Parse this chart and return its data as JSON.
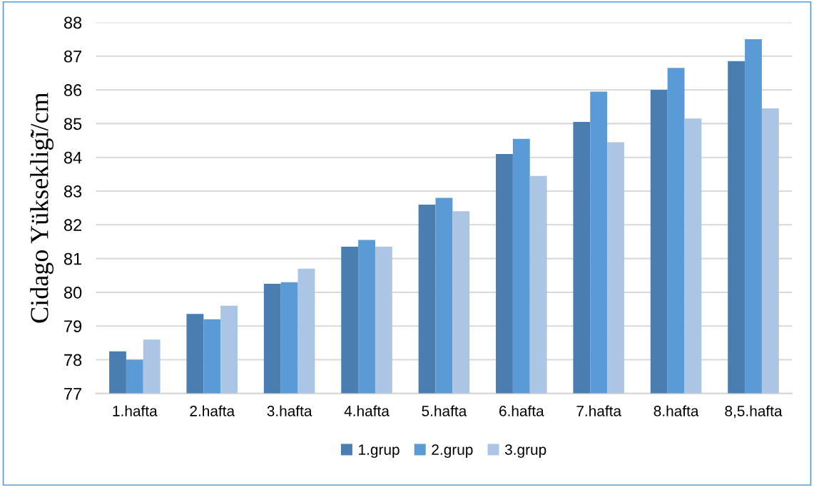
{
  "chart_data": {
    "type": "bar",
    "ylabel": "Cidago Yükseklig̃i/cm",
    "categories": [
      "1.hafta",
      "2.hafta",
      "3.hafta",
      "4.hafta",
      "5.hafta",
      "6.hafta",
      "7.hafta",
      "8.hafta",
      "8,5.hafta"
    ],
    "series": [
      {
        "name": "1.grup",
        "color": "#4a7eb0",
        "values": [
          78.25,
          79.36,
          80.25,
          81.35,
          82.6,
          84.1,
          85.05,
          86.0,
          86.85
        ]
      },
      {
        "name": "2.grup",
        "color": "#5b9bd5",
        "values": [
          78.0,
          79.2,
          80.3,
          81.55,
          82.8,
          84.55,
          85.95,
          86.65,
          87.5
        ]
      },
      {
        "name": "3.grup",
        "color": "#adc5e5",
        "values": [
          78.6,
          79.6,
          80.7,
          81.35,
          82.4,
          83.45,
          84.45,
          85.15,
          85.45
        ]
      }
    ],
    "ylim": [
      77,
      88
    ],
    "yticks": [
      77,
      78,
      79,
      80,
      81,
      82,
      83,
      84,
      85,
      86,
      87,
      88
    ],
    "grid": "y",
    "legend": "bottom"
  }
}
